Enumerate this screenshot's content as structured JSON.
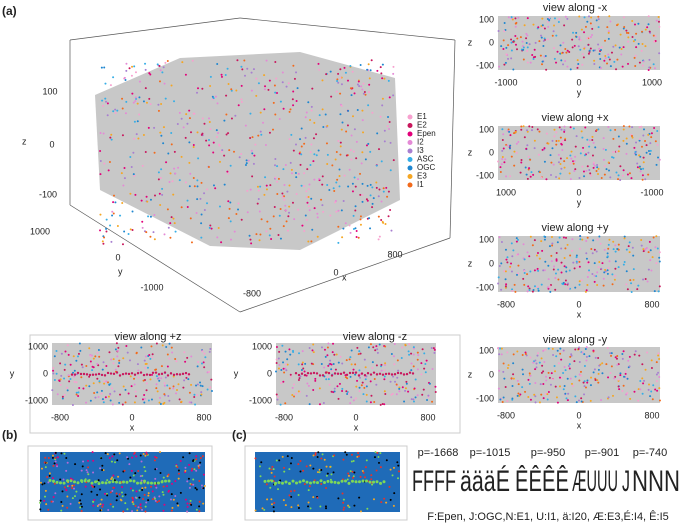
{
  "panel_labels": [
    "(a)",
    "(b)",
    "(c)"
  ],
  "main3d": {
    "z_label": "z",
    "y_label": "y",
    "x_label": "x",
    "zticks": [
      100,
      0,
      -100
    ],
    "yticks": [
      1000,
      0,
      -1000
    ],
    "xticks": [
      800,
      0,
      -800
    ],
    "legend": [
      {
        "name": "E1",
        "color": "#f7a1cf"
      },
      {
        "name": "E2",
        "color": "#c8175d"
      },
      {
        "name": "Epen",
        "color": "#e2007a"
      },
      {
        "name": "I2",
        "color": "#e48ad6"
      },
      {
        "name": "I3",
        "color": "#a87fd0"
      },
      {
        "name": "ASC",
        "color": "#36aee6"
      },
      {
        "name": "OGC",
        "color": "#1e86d0"
      },
      {
        "name": "E3",
        "color": "#f5a623"
      },
      {
        "name": "I1",
        "color": "#f26a1b"
      }
    ]
  },
  "views": [
    {
      "title": "view along -x",
      "xlabel": "y",
      "ylabel": "z",
      "xticks": [
        -1000,
        0,
        1000
      ],
      "yticks": [
        100,
        0,
        -100
      ]
    },
    {
      "title": "view along +x",
      "xlabel": "y",
      "ylabel": "z",
      "xticks": [
        1000,
        0,
        -1000
      ],
      "yticks": [
        100,
        0,
        -100
      ]
    },
    {
      "title": "view along +y",
      "xlabel": "x",
      "ylabel": "z",
      "xticks": [
        -800,
        0,
        800
      ],
      "yticks": [
        100,
        0,
        -100
      ]
    },
    {
      "title": "view along -y",
      "xlabel": "x",
      "ylabel": "z",
      "xticks": [
        -800,
        0,
        800
      ],
      "yticks": [
        100,
        0,
        -100
      ]
    },
    {
      "title": "view along +z",
      "xlabel": "x",
      "ylabel": "y",
      "xticks": [
        -800,
        0,
        800
      ],
      "yticks": [
        1000,
        0,
        -1000
      ]
    },
    {
      "title": "view along -z",
      "xlabel": "x",
      "ylabel": "y",
      "xticks": [
        -800,
        0,
        800
      ],
      "yticks": [
        1000,
        0,
        -1000
      ]
    }
  ],
  "panel_c": {
    "p_labels": [
      "p=-1668",
      "p=-1015",
      "p=-950",
      "p=-901",
      "p=-740"
    ],
    "letters": [
      {
        "text": "FFFF",
        "color": "#3a3a9a"
      },
      {
        "text": "äääÉ",
        "color": "#c8a56a"
      },
      {
        "text": "ÊÊÊÊ",
        "color": "#c8a56a"
      },
      {
        "text": "ÆUUU",
        "color": "#c8a56a"
      },
      {
        "text": "J",
        "color": "#c8a56a"
      },
      {
        "text": "NNN",
        "color": "#7ec8e3"
      }
    ],
    "caption": "F:Epen, J:OGC,N:E1, U:I1, ä:I20, Æ:E3,É:I4, Ê:I5"
  }
}
